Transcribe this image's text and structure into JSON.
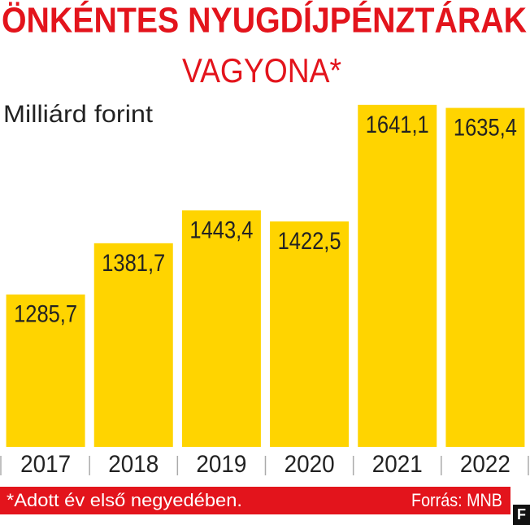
{
  "chart_data": {
    "type": "bar",
    "title": "ÖNKÉNTES NYUGDÍJPÉNZTÁRAK",
    "subtitle": "VAGYONA*",
    "y_label": "Milliárd forint",
    "categories": [
      "2017",
      "2018",
      "2019",
      "2020",
      "2021",
      "2022"
    ],
    "values": [
      1285.7,
      1381.7,
      1443.4,
      1422.5,
      1641.1,
      1635.4
    ],
    "value_labels": [
      "1285,7",
      "1381,7",
      "1443,4",
      "1422,5",
      "1641,1",
      "1635,4"
    ],
    "color": "#ffd400",
    "ylim": [
      1000,
      1650
    ],
    "footnote": "*Adott év első negyedében.",
    "source": "Forrás: MNB",
    "logo": "F"
  }
}
